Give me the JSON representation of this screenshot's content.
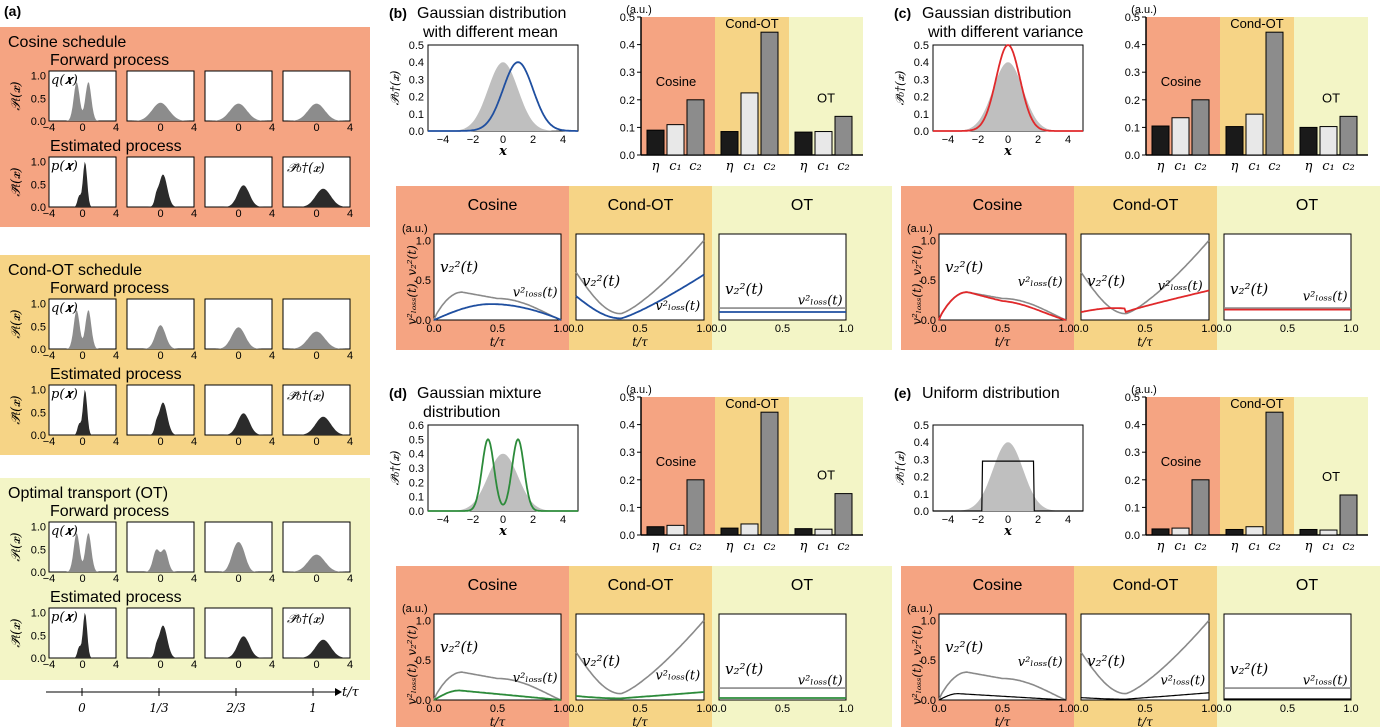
{
  "colors": {
    "cosine": "#f5a482",
    "condot": "#f6d486",
    "ot": "#f3f5c6",
    "fwd_fill": "#8c8c8c",
    "est_fill": "#2b2b2b",
    "target_fill": "#bfbfbf",
    "bar_eta": "#1a1a1a",
    "bar_c1": "#e8e8e8",
    "bar_c2": "#8c8c8c",
    "v2_line": "#8a8a8a",
    "blue": "#1f4fa0",
    "red": "#e0292b",
    "green": "#2c8b3a",
    "black": "#000000"
  },
  "panel_a": {
    "letter": "(a)",
    "schedules": [
      {
        "key": "cosine",
        "title": "Cosine schedule"
      },
      {
        "key": "condot",
        "title": "Cond-OT schedule"
      },
      {
        "key": "ot",
        "title": "Optimal transport (OT)"
      }
    ],
    "forward_label": "Forward process",
    "estimated_label": "Estimated process",
    "ylabel_forward": "𝒫ₜ(𝒙)",
    "ylabel_estimated": "𝒫̃ₜ(𝒙)",
    "q_label": "q(𝒙)",
    "p_label": "p(𝒙)",
    "target_label": "𝒫̃₀†(𝒙)",
    "y_ticks": [
      "0.0",
      "0.5",
      "1.0"
    ],
    "x_ticks": [
      "−4",
      "0",
      "4"
    ],
    "time_axis": {
      "ticks": [
        "0",
        "1/3",
        "2/3",
        "1"
      ],
      "label": "t/τ"
    }
  },
  "cases": [
    {
      "key": "b",
      "letter": "(b)",
      "title": [
        "Gaussian distribution",
        "with different mean"
      ],
      "line_color": "blue",
      "target": "shifted",
      "bars": {
        "cosine": [
          0.09,
          0.11,
          0.2
        ],
        "condot": [
          0.085,
          0.225,
          0.445
        ],
        "ot": [
          0.083,
          0.085,
          0.14
        ]
      }
    },
    {
      "key": "c",
      "letter": "(c)",
      "title": [
        "Gaussian distribution",
        "with different variance"
      ],
      "line_color": "red",
      "target": "narrow",
      "bars": {
        "cosine": [
          0.105,
          0.135,
          0.2
        ],
        "condot": [
          0.103,
          0.148,
          0.445
        ],
        "ot": [
          0.1,
          0.103,
          0.14
        ]
      }
    },
    {
      "key": "d",
      "letter": "(d)",
      "title": [
        "Gaussian mixture",
        "distribution"
      ],
      "line_color": "green",
      "target": "mixture",
      "bars": {
        "cosine": [
          0.03,
          0.035,
          0.2
        ],
        "condot": [
          0.025,
          0.04,
          0.445
        ],
        "ot": [
          0.023,
          0.021,
          0.15
        ]
      }
    },
    {
      "key": "e",
      "letter": "(e)",
      "title": [
        "Uniform distribution"
      ],
      "line_color": "black",
      "target": "uniform",
      "bars": {
        "cosine": [
          0.022,
          0.025,
          0.2
        ],
        "condot": [
          0.02,
          0.03,
          0.445
        ],
        "ot": [
          0.02,
          0.018,
          0.145
        ]
      }
    }
  ],
  "labels": {
    "au": "(a.u.)",
    "bar_ticks": [
      "0.0",
      "0.1",
      "0.2",
      "0.3",
      "0.4",
      "0.5"
    ],
    "bar_cats": [
      "η",
      "c₁",
      "c₂"
    ],
    "schedule_names": [
      "Cosine",
      "Cond-OT",
      "OT"
    ],
    "dist_ylabel": "𝒫̃₀†(𝒙)",
    "dist_xlabel": "𝒙",
    "dist_x_ticks": [
      "−4",
      "−2",
      "0",
      "2",
      "4"
    ],
    "dist_y_ticks": [
      "0.0",
      "0.1",
      "0.2",
      "0.3",
      "0.4",
      "0.5"
    ],
    "mixture_y_ticks": [
      "0.0",
      "0.1",
      "0.2",
      "0.3",
      "0.4",
      "0.5",
      "0.6"
    ],
    "loss_ylabel": "v²ₗₒₛₛ(t), v₂²(t)",
    "v2_label": "v₂²(t)",
    "vloss_label": "v²ₗₒₛₛ(t)",
    "loss_y_ticks": [
      "0.0",
      "0.5",
      "1.0"
    ],
    "loss_x_ticks": [
      "0.0",
      "0.5",
      "1.0"
    ],
    "loss_xlabel": "t/τ"
  },
  "chart_data": [
    {
      "type": "bar",
      "panel": "b",
      "categories": [
        "η",
        "c₁",
        "c₂"
      ],
      "ylim": [
        0,
        0.5
      ],
      "ylabel": "(a.u.)",
      "series": [
        {
          "name": "Cosine",
          "values": [
            0.09,
            0.11,
            0.2
          ]
        },
        {
          "name": "Cond-OT",
          "values": [
            0.085,
            0.225,
            0.445
          ]
        },
        {
          "name": "OT",
          "values": [
            0.083,
            0.085,
            0.14
          ]
        }
      ]
    },
    {
      "type": "bar",
      "panel": "c",
      "categories": [
        "η",
        "c₁",
        "c₂"
      ],
      "ylim": [
        0,
        0.5
      ],
      "ylabel": "(a.u.)",
      "series": [
        {
          "name": "Cosine",
          "values": [
            0.105,
            0.135,
            0.2
          ]
        },
        {
          "name": "Cond-OT",
          "values": [
            0.103,
            0.148,
            0.445
          ]
        },
        {
          "name": "OT",
          "values": [
            0.1,
            0.103,
            0.14
          ]
        }
      ]
    },
    {
      "type": "bar",
      "panel": "d",
      "categories": [
        "η",
        "c₁",
        "c₂"
      ],
      "ylim": [
        0,
        0.5
      ],
      "ylabel": "(a.u.)",
      "series": [
        {
          "name": "Cosine",
          "values": [
            0.03,
            0.035,
            0.2
          ]
        },
        {
          "name": "Cond-OT",
          "values": [
            0.025,
            0.04,
            0.445
          ]
        },
        {
          "name": "OT",
          "values": [
            0.023,
            0.021,
            0.15
          ]
        }
      ]
    },
    {
      "type": "bar",
      "panel": "e",
      "categories": [
        "η",
        "c₁",
        "c₂"
      ],
      "ylim": [
        0,
        0.5
      ],
      "ylabel": "(a.u.)",
      "series": [
        {
          "name": "Cosine",
          "values": [
            0.022,
            0.025,
            0.2
          ]
        },
        {
          "name": "Cond-OT",
          "values": [
            0.02,
            0.03,
            0.445
          ]
        },
        {
          "name": "OT",
          "values": [
            0.02,
            0.018,
            0.145
          ]
        }
      ]
    }
  ]
}
